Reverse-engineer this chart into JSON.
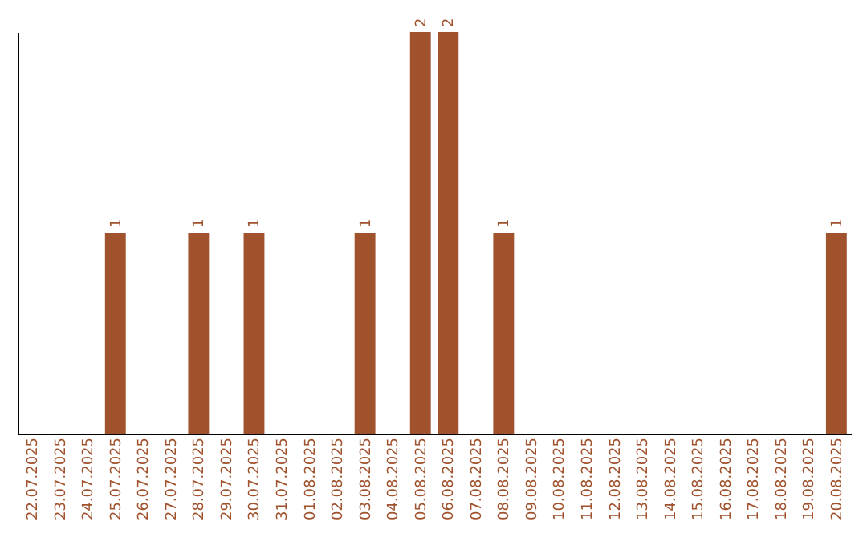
{
  "chart_data": {
    "type": "bar",
    "categories": [
      "22.07.2025",
      "23.07.2025",
      "24.07.2025",
      "25.07.2025",
      "26.07.2025",
      "27.07.2025",
      "28.07.2025",
      "29.07.2025",
      "30.07.2025",
      "31.07.2025",
      "01.08.2025",
      "02.08.2025",
      "03.08.2025",
      "04.08.2025",
      "05.08.2025",
      "06.08.2025",
      "07.08.2025",
      "08.08.2025",
      "09.08.2025",
      "10.08.2025",
      "11.08.2025",
      "12.08.2025",
      "13.08.2025",
      "14.08.2025",
      "15.08.2025",
      "16.08.2025",
      "17.08.2025",
      "18.08.2025",
      "19.08.2025",
      "20.08.2025"
    ],
    "values": [
      0,
      0,
      0,
      1,
      0,
      0,
      1,
      0,
      1,
      0,
      0,
      0,
      1,
      0,
      2,
      2,
      0,
      1,
      0,
      0,
      0,
      0,
      0,
      0,
      0,
      0,
      0,
      0,
      0,
      1
    ],
    "value_labels": [
      null,
      null,
      null,
      "1",
      null,
      null,
      "1",
      null,
      "1",
      null,
      null,
      null,
      "1",
      null,
      "2",
      "2",
      null,
      "1",
      null,
      null,
      null,
      null,
      null,
      null,
      null,
      null,
      null,
      null,
      null,
      "1"
    ],
    "color": "#a0522d",
    "tick_labels": "x"
  }
}
